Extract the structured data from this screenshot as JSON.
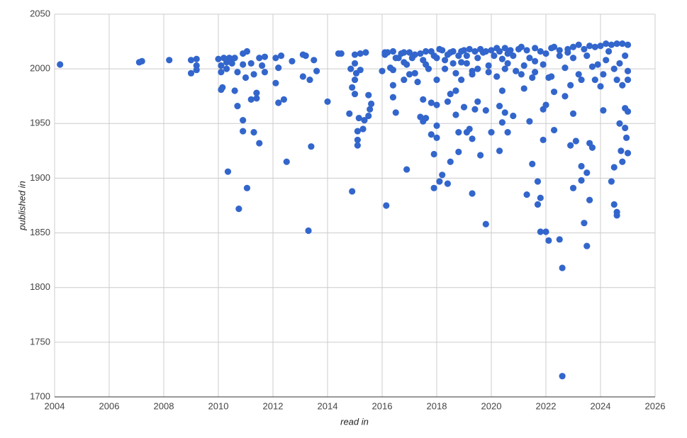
{
  "chart_data": {
    "type": "scatter",
    "x_label": "read in",
    "y_label": "published in",
    "color": "#3366cc",
    "grid": true,
    "xlim": [
      2004,
      2026
    ],
    "xticks": [
      2004,
      2006,
      2008,
      2010,
      2012,
      2014,
      2016,
      2018,
      2020,
      2022,
      2024,
      2026
    ],
    "ylim": [
      1700,
      2050
    ],
    "yticks": [
      1700,
      1750,
      1800,
      1850,
      1900,
      1950,
      2000,
      2050
    ],
    "x": [
      2004.2,
      2007.1,
      2007.2,
      2008.2,
      2009.0,
      2009.0,
      2009.2,
      2009.2,
      2009.2,
      2010.0,
      2010.1,
      2010.1,
      2010.15,
      2010.1,
      2010.2,
      2010.3,
      2010.3,
      2010.35,
      2010.4,
      2010.5,
      2010.5,
      2010.6,
      2010.6,
      2010.7,
      2010.7,
      2010.75,
      2010.9,
      2010.9,
      2010.9,
      2010.9,
      2011.05,
      2011.05,
      2011.0,
      2011.2,
      2011.2,
      2011.3,
      2011.3,
      2011.4,
      2011.4,
      2011.5,
      2011.5,
      2011.6,
      2011.7,
      2011.7,
      2012.1,
      2012.1,
      2012.2,
      2012.2,
      2012.3,
      2012.4,
      2012.5,
      2012.7,
      2013.1,
      2013.1,
      2013.2,
      2013.3,
      2013.35,
      2013.4,
      2013.5,
      2013.6,
      2014.0,
      2014.4,
      2014.5,
      2014.8,
      2014.85,
      2014.9,
      2014.9,
      2015.0,
      2015.0,
      2015.0,
      2015.05,
      2015.0,
      2015.1,
      2015.1,
      2015.1,
      2015.15,
      2015.2,
      2015.2,
      2015.3,
      2015.35,
      2015.4,
      2015.5,
      2015.5,
      2015.55,
      2015.6,
      2016.0,
      2016.1,
      2016.15,
      2016.2,
      2016.3,
      2016.4,
      2016.4,
      2016.4,
      2016.5,
      2016.6,
      2016.8,
      2016.8,
      2016.9,
      2016.9,
      2017.0,
      2017.2,
      2017.3,
      2017.4,
      2017.5,
      2017.5,
      2017.6,
      2017.6,
      2017.7,
      2017.8,
      2017.8,
      2017.9,
      2017.9,
      2018.0,
      2018.0,
      2018.0,
      2018.0,
      2018.0,
      2018.1,
      2018.2,
      2018.2,
      2018.3,
      2018.4,
      2018.4,
      2018.5,
      2018.5,
      2018.5,
      2018.6,
      2018.7,
      2018.7,
      2018.8,
      2018.8,
      2018.9,
      2018.9,
      2019.0,
      2019.1,
      2019.2,
      2019.2,
      2019.3,
      2019.3,
      2019.3,
      2019.4,
      2019.5,
      2019.5,
      2019.6,
      2019.7,
      2019.8,
      2019.8,
      2019.9,
      2020.0,
      2020.0,
      2020.2,
      2020.3,
      2020.3,
      2020.4,
      2020.4,
      2020.5,
      2020.5,
      2020.6,
      2020.7,
      2020.8,
      2021.0,
      2021.1,
      2021.2,
      2021.3,
      2021.4,
      2021.5,
      2021.6,
      2021.7,
      2021.7,
      2021.8,
      2021.8,
      2021.9,
      2021.9,
      2022.0,
      2022.0,
      2022.1,
      2022.2,
      2022.3,
      2022.3,
      2022.5,
      2022.6,
      2022.6,
      2022.7,
      2022.8,
      2022.9,
      2023.0,
      2023.0,
      2023.1,
      2023.3,
      2023.3,
      2023.4,
      2023.5,
      2023.5,
      2023.6,
      2023.6,
      2023.7,
      2023.8,
      2024.0,
      2024.1,
      2024.4,
      2024.5,
      2024.5,
      2024.6,
      2024.6,
      2024.7,
      2024.75,
      2024.8,
      2024.9,
      2024.9,
      2024.95,
      2025.0,
      2025.0,
      2016.1,
      2016.5,
      2016.7,
      2017.0,
      2017.1,
      2017.4,
      2017.8,
      2017.9,
      2018.1,
      2018.4,
      2018.6,
      2018.8,
      2019.0,
      2019.1,
      2019.4,
      2019.6,
      2019.8,
      2020.1,
      2020.3,
      2020.5,
      2020.6,
      2020.8,
      2021.1,
      2021.3,
      2021.4,
      2021.6,
      2021.8,
      2022.0,
      2022.3,
      2022.5,
      2022.8,
      2023.0,
      2023.2,
      2023.4,
      2023.6,
      2023.8,
      2024.0,
      2024.2,
      2024.4,
      2024.6,
      2024.8,
      2025.0,
      2024.9,
      2024.7,
      2024.5,
      2024.3,
      2023.9,
      2023.5,
      2023.2,
      2023.0,
      2022.7,
      2022.5,
      2022.2,
      2021.9,
      2021.6,
      2021.2,
      2020.9,
      2020.6,
      2020.2,
      2019.9,
      2019.5,
      2019.1,
      2018.7,
      2018.3,
      2017.6,
      2017.2,
      2016.8,
      2016.4,
      2017.5,
      2018.9,
      2019.3,
      2020.4,
      2021.5,
      2022.1,
      2022.9,
      2023.3,
      2024.1,
      2024.6,
      2025.0,
      2025.0,
      2024.8,
      2024.2,
      2023.7
    ],
    "values": [
      2004,
      2006,
      2007,
      2008,
      2008,
      1996,
      2009,
      2003,
      1999,
      2009,
      2003,
      1981,
      1983,
      1997,
      2010,
      2006,
      2000,
      1906,
      2010,
      2005,
      2009,
      2010,
      1980,
      1966,
      1997,
      1872,
      1953,
      1943,
      2014,
      2004,
      2016,
      1891,
      1992,
      2005,
      1972,
      1942,
      1995,
      1978,
      1973,
      1932,
      2010,
      2003,
      2011,
      1997,
      1987,
      2010,
      2001,
      1969,
      2012,
      1972,
      1915,
      2007,
      2013,
      1993,
      2012,
      1852,
      1990,
      1929,
      2008,
      1998,
      1970,
      2014,
      2014,
      1959,
      2000,
      1983,
      1888,
      2005,
      2013,
      1977,
      1996,
      1990,
      1930,
      1935,
      1943,
      1955,
      2014,
      1999,
      1945,
      1953,
      2015,
      1976,
      1957,
      1963,
      1968,
      1998,
      2013,
      1875,
      2015,
      2001,
      1985,
      2016,
      1974,
      1960,
      2010,
      2015,
      1990,
      1908,
      2004,
      1995,
      2013,
      1988,
      1956,
      1972,
      1952,
      2016,
      1955,
      2000,
      1969,
      1940,
      1891,
      1922,
      1937,
      1967,
      1948,
      2010,
      1990,
      1897,
      2017,
      1903,
      2000,
      1895,
      1970,
      1977,
      1915,
      2015,
      2005,
      1980,
      1958,
      1942,
      1924,
      2016,
      1990,
      1965,
      1942,
      1945,
      2018,
      1886,
      1936,
      1998,
      1963,
      1970,
      2010,
      1921,
      2015,
      1858,
      1962,
      1997,
      2017,
      1942,
      2019,
      1925,
      1966,
      1980,
      1951,
      1960,
      2000,
      1942,
      2017,
      1957,
      2018,
      1995,
      1982,
      1885,
      1952,
      1913,
      1997,
      1897,
      1876,
      1851,
      1882,
      1935,
      1963,
      1967,
      1851,
      1843,
      2019,
      1979,
      1944,
      1844,
      1818,
      1719,
      1975,
      2018,
      1930,
      1959,
      1891,
      1934,
      1898,
      1911,
      1859,
      1905,
      1838,
      1880,
      1932,
      1928,
      1990,
      1984,
      1962,
      1897,
      1876,
      1910,
      1869,
      1866,
      1950,
      1925,
      1915,
      1964,
      1946,
      1937,
      1923,
      1961,
      2015,
      2010,
      2014,
      2015,
      2010,
      2014,
      2016,
      2012,
      2018,
      2013,
      2016,
      2012,
      2017,
      2012,
      2016,
      2018,
      2016,
      2012,
      2016,
      2019,
      2014,
      2012,
      2020,
      2017,
      2010,
      2019,
      2016,
      2014,
      2020,
      2017,
      2015,
      2020,
      2022,
      2018,
      2021,
      2020,
      2021,
      2023,
      2022,
      2023,
      2023,
      2022,
      2012,
      2005,
      2000,
      2016,
      2004,
      2012,
      1995,
      2010,
      2001,
      2012,
      1993,
      2004,
      2007,
      2003,
      1998,
      2005,
      1993,
      2003,
      2000,
      2005,
      1996,
      2008,
      2004,
      1996,
      2006,
      1999,
      2008,
      2006,
      1995,
      2009,
      1992,
      1992,
      1985,
      1990,
      1995,
      1990,
      1990,
      1998,
      1985,
      2008,
      2002
    ]
  }
}
